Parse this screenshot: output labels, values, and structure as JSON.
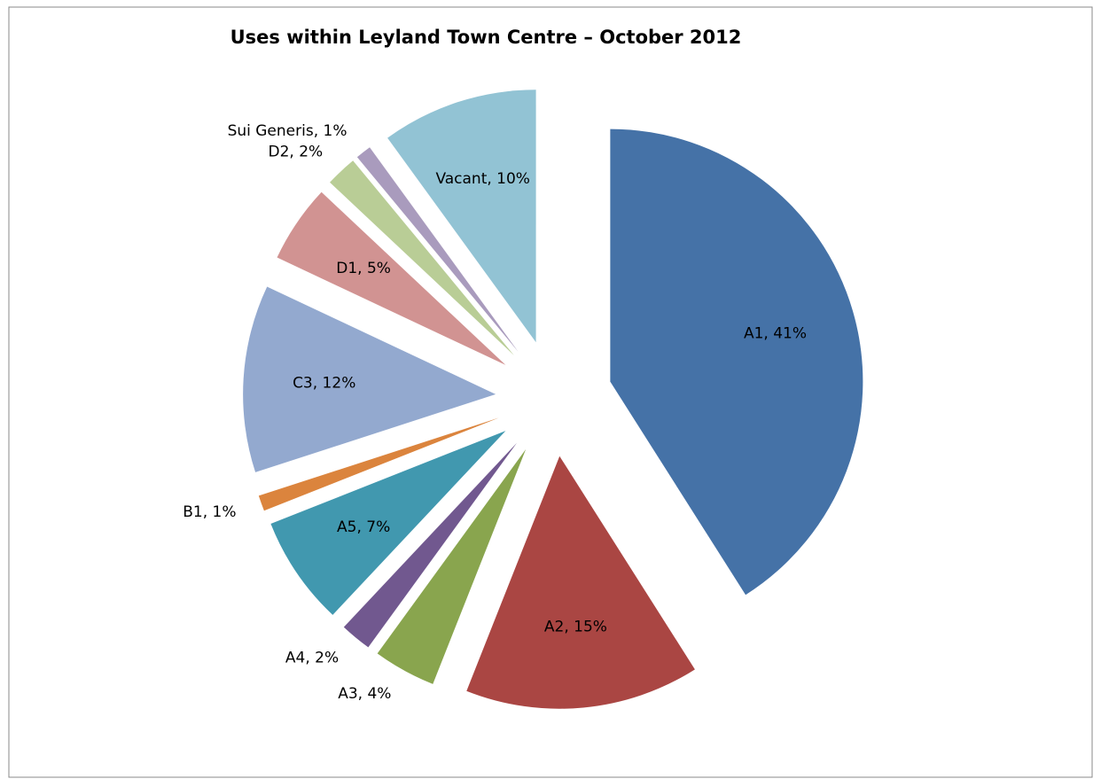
{
  "chart_data": {
    "type": "pie",
    "title": "Uses within Leyland Town Centre – October 2012",
    "categories": [
      "A1",
      "A2",
      "A3",
      "A4",
      "A5",
      "B1",
      "C3",
      "D1",
      "D2",
      "Sui Generis",
      "Vacant"
    ],
    "values": [
      41,
      15,
      4,
      2,
      7,
      1,
      12,
      5,
      2,
      1,
      10
    ],
    "value_labels": [
      "A1, 41%",
      "A2, 15%",
      "A3, 4%",
      "A4, 2%",
      "A5, 7%",
      "B1, 1%",
      "C3, 12%",
      "D1, 5%",
      "D2, 2%",
      "Sui Generis, 1%",
      "Vacant, 10%"
    ],
    "colors": [
      "#4572a7",
      "#aa4643",
      "#89a54e",
      "#71588f",
      "#4198af",
      "#db843d",
      "#93a9cf",
      "#d19392",
      "#b9cd96",
      "#a99bbd",
      "#92c3d4"
    ]
  }
}
